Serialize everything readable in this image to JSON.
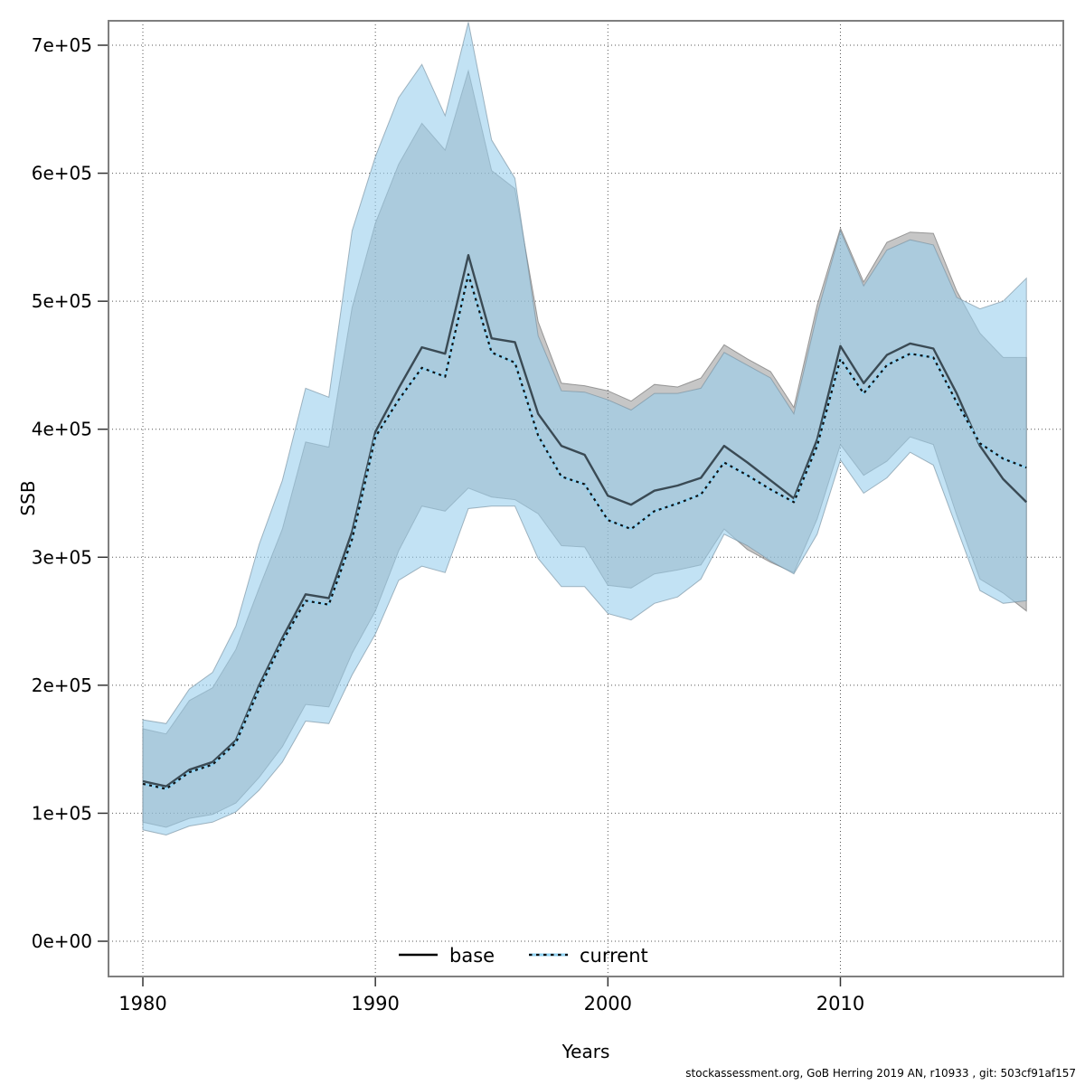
{
  "footer": "stockassessment.org, GoB Herring 2019 AN, r10933 , git: 503cf91af157",
  "chart_data": {
    "type": "line",
    "title": "",
    "xlabel": "Years",
    "ylabel": "SSB",
    "grid": "dotted",
    "legend_position": "bottom-center",
    "xlim": [
      1978.5,
      2019.6
    ],
    "ylim": [
      -27500,
      719000
    ],
    "x_ticks": [
      1980,
      1990,
      2000,
      2010
    ],
    "y_ticks": [
      {
        "value": 0,
        "label": "0e+00"
      },
      {
        "value": 100000,
        "label": "1e+05"
      },
      {
        "value": 200000,
        "label": "2e+05"
      },
      {
        "value": 300000,
        "label": "3e+05"
      },
      {
        "value": 400000,
        "label": "4e+05"
      },
      {
        "value": 500000,
        "label": "5e+05"
      },
      {
        "value": 600000,
        "label": "6e+05"
      },
      {
        "value": 700000,
        "label": "7e+05"
      }
    ],
    "years": [
      1980,
      1981,
      1982,
      1983,
      1984,
      1985,
      1986,
      1987,
      1988,
      1989,
      1990,
      1991,
      1992,
      1993,
      1994,
      1995,
      1996,
      1997,
      1998,
      1999,
      2000,
      2001,
      2002,
      2003,
      2004,
      2005,
      2006,
      2007,
      2008,
      2009,
      2010,
      2011,
      2012,
      2013,
      2014,
      2015,
      2016,
      2017,
      2018
    ],
    "series": [
      {
        "name": "base",
        "line_style": "solid",
        "line_color": "#3a4a54",
        "legend_line_color": "#000000",
        "band_color": "rgba(128,128,128,0.45)",
        "band_edge_color": "rgba(110,110,110,0.65)",
        "values": [
          125000,
          121000,
          134000,
          140000,
          157000,
          200000,
          237000,
          271000,
          268000,
          320000,
          398000,
          432000,
          464000,
          459000,
          536000,
          471000,
          468000,
          412000,
          387000,
          380000,
          348000,
          341000,
          352000,
          356000,
          362000,
          387000,
          374000,
          360000,
          346000,
          392000,
          465000,
          436000,
          458000,
          467000,
          463000,
          428000,
          387000,
          361000,
          343000
        ],
        "ci_low": [
          93000,
          89000,
          96000,
          99000,
          108000,
          128000,
          152000,
          185000,
          183000,
          225000,
          258000,
          305000,
          340000,
          336000,
          354000,
          347000,
          345000,
          334000,
          309000,
          308000,
          278000,
          276000,
          287000,
          290000,
          294000,
          322000,
          306000,
          296000,
          288000,
          330000,
          388000,
          364000,
          375000,
          394000,
          388000,
          333000,
          283000,
          272000,
          258000
        ],
        "ci_high": [
          166000,
          162000,
          188000,
          198000,
          228000,
          276000,
          322000,
          390000,
          386000,
          495000,
          561000,
          607000,
          639000,
          618000,
          680000,
          602000,
          588000,
          484000,
          436000,
          434000,
          430000,
          422000,
          435000,
          433000,
          440000,
          466000,
          455000,
          445000,
          417000,
          497000,
          557000,
          515000,
          546000,
          554000,
          553000,
          508000,
          475000,
          456000,
          456000
        ]
      },
      {
        "name": "current",
        "line_style": "dotted",
        "line_color": "#8fd2f2",
        "line_overlay_color": "#111111",
        "band_color": "rgba(153,207,237,0.60)",
        "band_edge_color": "rgba(120,145,160,0.65)",
        "values": [
          123000,
          119000,
          132000,
          138000,
          155000,
          197000,
          234000,
          266000,
          263000,
          314000,
          394000,
          423000,
          448000,
          441000,
          521000,
          460000,
          452000,
          395000,
          363000,
          357000,
          329000,
          322000,
          336000,
          342000,
          349000,
          374000,
          364000,
          353000,
          343000,
          387000,
          455000,
          428000,
          450000,
          459000,
          456000,
          421000,
          389000,
          377000,
          370000
        ],
        "ci_low": [
          87000,
          83000,
          90000,
          93000,
          101000,
          118000,
          140000,
          172000,
          170000,
          208000,
          240000,
          282000,
          293000,
          288000,
          338000,
          340000,
          340000,
          299000,
          277000,
          277000,
          256000,
          251000,
          264000,
          269000,
          283000,
          318000,
          309000,
          297000,
          287000,
          318000,
          376000,
          350000,
          362000,
          382000,
          372000,
          323000,
          274000,
          264000,
          266000
        ],
        "ci_high": [
          173000,
          170000,
          197000,
          210000,
          246000,
          310000,
          360000,
          432000,
          425000,
          555000,
          613000,
          659000,
          685000,
          645000,
          718000,
          626000,
          596000,
          473000,
          430000,
          429000,
          423000,
          415000,
          428000,
          428000,
          432000,
          460000,
          450000,
          440000,
          412000,
          490000,
          555000,
          512000,
          540000,
          548000,
          544000,
          503000,
          494000,
          500000,
          518000
        ]
      }
    ]
  }
}
